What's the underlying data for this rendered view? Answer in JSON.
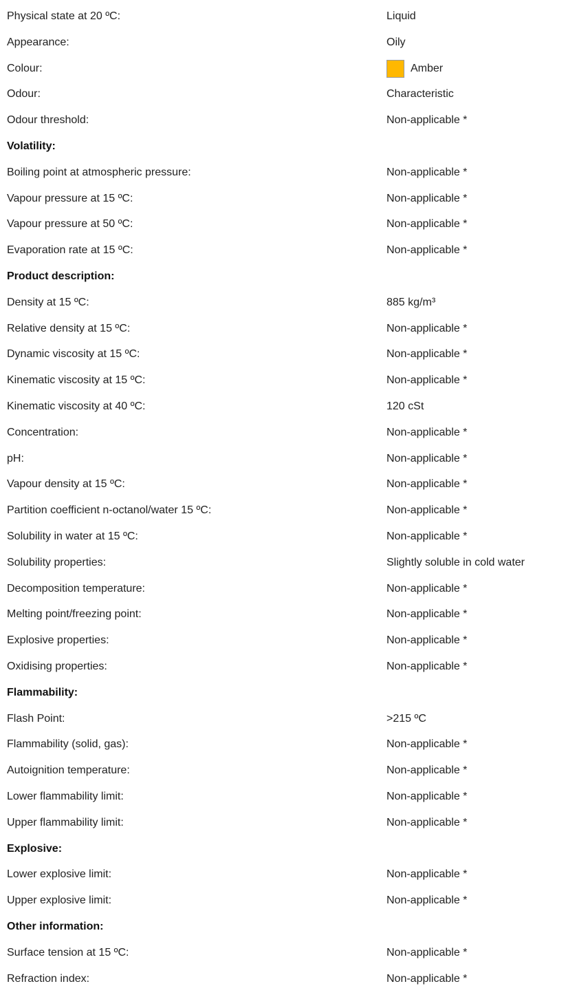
{
  "rows": [
    {
      "label": "Physical state at 20 ºC:",
      "value": "Liquid"
    },
    {
      "label": "Appearance:",
      "value": "Oily"
    },
    {
      "label": "Colour:",
      "value": "Amber",
      "swatch": "#ffb800"
    },
    {
      "label": "Odour:",
      "value": "Characteristic"
    },
    {
      "label": "Odour threshold:",
      "value": "Non-applicable *"
    },
    {
      "heading": "Volatility:"
    },
    {
      "label": "Boiling point at atmospheric pressure:",
      "value": "Non-applicable *"
    },
    {
      "label": "Vapour pressure at 15 ºC:",
      "value": "Non-applicable *"
    },
    {
      "label": "Vapour pressure at 50 ºC:",
      "value": "Non-applicable *"
    },
    {
      "label": "Evaporation rate at 15 ºC:",
      "value": "Non-applicable *"
    },
    {
      "heading": "Product description:"
    },
    {
      "label": "Density at 15 ºC:",
      "value": "885 kg/m³"
    },
    {
      "label": "Relative density at 15 ºC:",
      "value": "Non-applicable *"
    },
    {
      "label": "Dynamic viscosity at 15 ºC:",
      "value": "Non-applicable *"
    },
    {
      "label": "Kinematic viscosity at 15 ºC:",
      "value": "Non-applicable *"
    },
    {
      "label": "Kinematic viscosity at 40 ºC:",
      "value": "120 cSt"
    },
    {
      "label": "Concentration:",
      "value": "Non-applicable *"
    },
    {
      "label": "pH:",
      "value": "Non-applicable *"
    },
    {
      "label": "Vapour density at 15 ºC:",
      "value": "Non-applicable *"
    },
    {
      "label": "Partition coefficient n-octanol/water 15 ºC:",
      "value": "Non-applicable *"
    },
    {
      "label": "Solubility in water at 15 ºC:",
      "value": "Non-applicable *"
    },
    {
      "label": "Solubility properties:",
      "value": "Slightly soluble in cold water"
    },
    {
      "label": "Decomposition temperature:",
      "value": "Non-applicable *"
    },
    {
      "label": "Melting point/freezing point:",
      "value": "Non-applicable *"
    },
    {
      "label": "Explosive properties:",
      "value": "Non-applicable *"
    },
    {
      "label": "Oxidising properties:",
      "value": "Non-applicable *"
    },
    {
      "heading": "Flammability:"
    },
    {
      "label": "Flash Point:",
      "value": ">215 ºC"
    },
    {
      "label": "Flammability (solid, gas):",
      "value": "Non-applicable *"
    },
    {
      "label": "Autoignition temperature:",
      "value": "Non-applicable *"
    },
    {
      "label": "Lower flammability limit:",
      "value": "Non-applicable *"
    },
    {
      "label": "Upper flammability limit:",
      "value": "Non-applicable *"
    },
    {
      "heading": "Explosive:"
    },
    {
      "label": "Lower explosive limit:",
      "value": "Non-applicable *"
    },
    {
      "label": "Upper explosive limit:",
      "value": "Non-applicable *"
    },
    {
      "heading": "Other information:"
    },
    {
      "label": "Surface tension at 15 ºC:",
      "value": "Non-applicable *"
    },
    {
      "label": "Refraction index:",
      "value": "Non-applicable *"
    }
  ]
}
